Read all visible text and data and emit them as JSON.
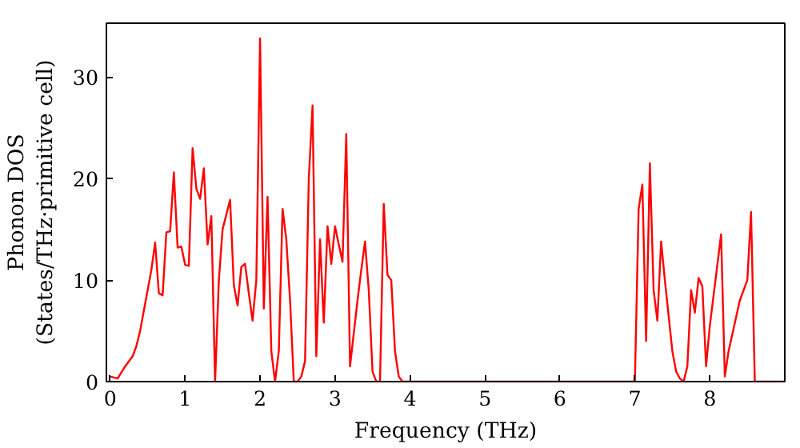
{
  "chart_data": {
    "type": "line",
    "xlabel": "Frequency (THz)",
    "ylabel": "Phonon DOS\n(States/THz·primitive cell)",
    "xlim": [
      -0.05,
      9
    ],
    "ylim": [
      0,
      35.3
    ],
    "xticks": [
      0,
      1,
      2,
      3,
      4,
      5,
      6,
      7,
      8
    ],
    "yticks": [
      0,
      10,
      20,
      30
    ],
    "grid": false,
    "series": [
      {
        "color": "#ff0000",
        "x": [
          0,
          0.1,
          0.2,
          0.3,
          0.35,
          0.4,
          0.5,
          0.55,
          0.6,
          0.65,
          0.7,
          0.75,
          0.8,
          0.85,
          0.9,
          0.95,
          1.0,
          1.05,
          1.1,
          1.15,
          1.2,
          1.25,
          1.3,
          1.35,
          1.4,
          1.45,
          1.5,
          1.6,
          1.65,
          1.7,
          1.75,
          1.8,
          1.85,
          1.9,
          1.95,
          2.0,
          2.05,
          2.1,
          2.15,
          2.2,
          2.25,
          2.3,
          2.35,
          2.4,
          2.45,
          2.5,
          2.55,
          2.6,
          2.65,
          2.7,
          2.75,
          2.8,
          2.85,
          2.9,
          2.95,
          3.0,
          3.05,
          3.1,
          3.15,
          3.2,
          3.3,
          3.35,
          3.4,
          3.45,
          3.5,
          3.55,
          3.6,
          3.65,
          3.7,
          3.75,
          3.8,
          3.85,
          3.9,
          4.0,
          7.0,
          7.05,
          7.1,
          7.15,
          7.2,
          7.25,
          7.3,
          7.35,
          7.4,
          7.5,
          7.55,
          7.6,
          7.65,
          7.7,
          7.75,
          7.8,
          7.85,
          7.9,
          7.95,
          8.0,
          8.1,
          8.15,
          8.2,
          8.25,
          8.4,
          8.5,
          8.55,
          8.6,
          9.0
        ],
        "values": [
          0.5,
          0.3,
          1.5,
          2.5,
          3.5,
          5,
          9,
          11,
          13.7,
          8.7,
          8.5,
          14.7,
          14.8,
          20.6,
          13.2,
          13.3,
          11.5,
          11.4,
          23,
          19,
          18,
          21,
          13.5,
          16.3,
          0,
          10,
          15,
          17.9,
          9.5,
          7.5,
          11.3,
          11.6,
          8.7,
          6,
          10,
          33.8,
          7.2,
          18.2,
          3,
          0,
          3,
          17,
          14,
          8,
          0,
          0,
          0.5,
          2,
          20,
          27.2,
          2.5,
          14,
          5.8,
          15.3,
          11.6,
          15.3,
          13.5,
          11.8,
          24.4,
          1.5,
          8,
          11,
          13.8,
          9,
          1,
          0,
          0,
          17.5,
          10.5,
          10,
          3,
          0.5,
          0,
          0,
          0,
          17,
          19.4,
          4,
          21.5,
          9,
          6,
          13.8,
          10,
          3,
          1,
          0.3,
          0,
          1.5,
          9,
          6.8,
          10.2,
          9.4,
          1.5,
          5.5,
          11.5,
          14.5,
          0.5,
          3,
          8,
          10,
          16.7,
          0,
          0
        ]
      }
    ]
  }
}
